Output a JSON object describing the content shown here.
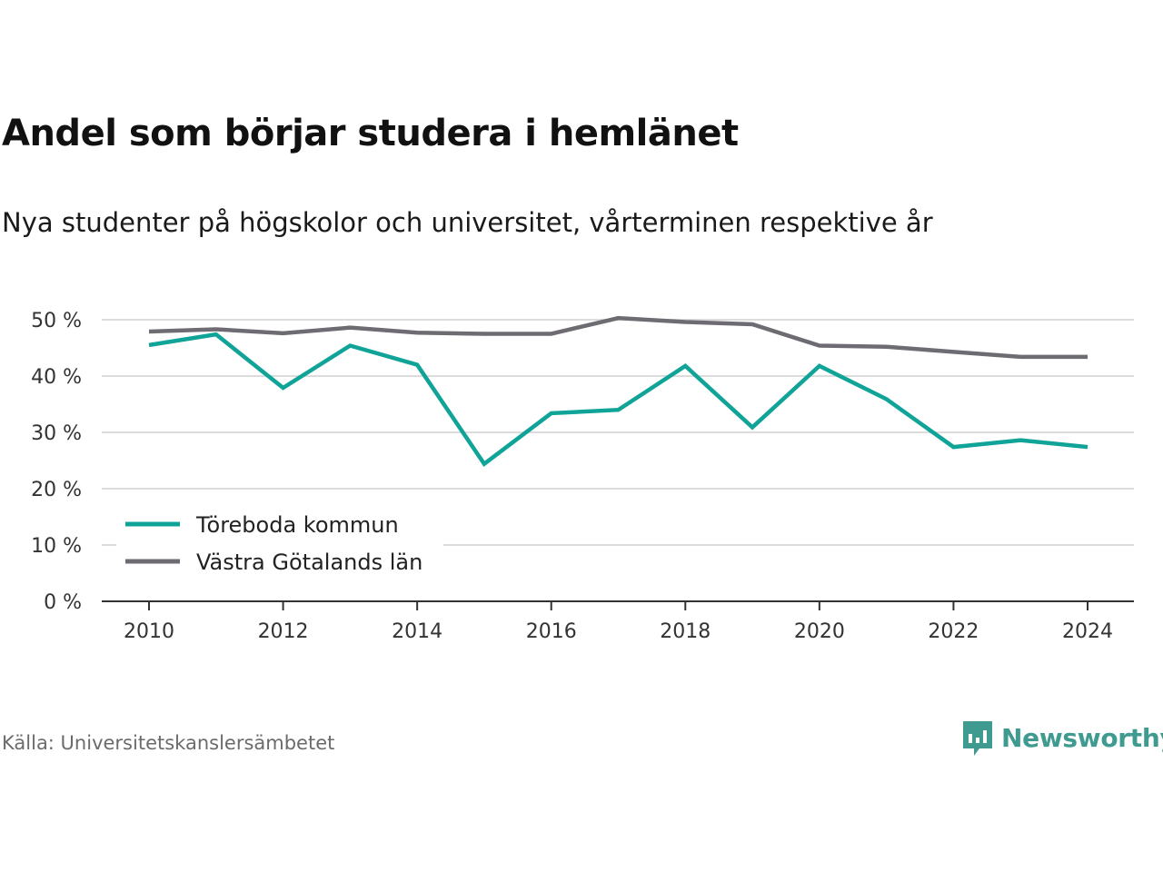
{
  "title": "Andel som börjar studera i hemlänet",
  "subtitle": "Nya studenter på högskolor och universitet, vårterminen respektive år",
  "source": "Källa: Universitetskanslersämbetet",
  "brand": {
    "name": "Newsworthy",
    "icon": "newsworthy-logo-icon",
    "color": "#3f9a90"
  },
  "chart_data": {
    "type": "line",
    "x": [
      2010,
      2011,
      2012,
      2013,
      2014,
      2015,
      2016,
      2017,
      2018,
      2019,
      2020,
      2021,
      2022,
      2023,
      2024
    ],
    "series": [
      {
        "name": "Töreboda kommun",
        "color": "#10a398",
        "values": [
          45.5,
          47.4,
          37.9,
          45.4,
          42.0,
          24.4,
          33.4,
          34.0,
          41.8,
          30.9,
          41.8,
          35.9,
          27.4,
          28.6,
          27.4
        ]
      },
      {
        "name": "Västra Götalands län",
        "color": "#6e6c72",
        "values": [
          47.9,
          48.3,
          47.6,
          48.6,
          47.7,
          47.5,
          47.5,
          50.3,
          49.6,
          49.2,
          45.4,
          45.2,
          44.3,
          43.4,
          43.4
        ]
      }
    ],
    "y_ticks": [
      "0 %",
      "10 %",
      "20 %",
      "30 %",
      "40 %",
      "50 %"
    ],
    "x_ticks": [
      "2010",
      "2012",
      "2014",
      "2016",
      "2018",
      "2020",
      "2022",
      "2024"
    ],
    "ylim": [
      0,
      50
    ],
    "xlim": [
      2010,
      2024
    ],
    "grid": true,
    "legend_position": "bottom-left"
  }
}
